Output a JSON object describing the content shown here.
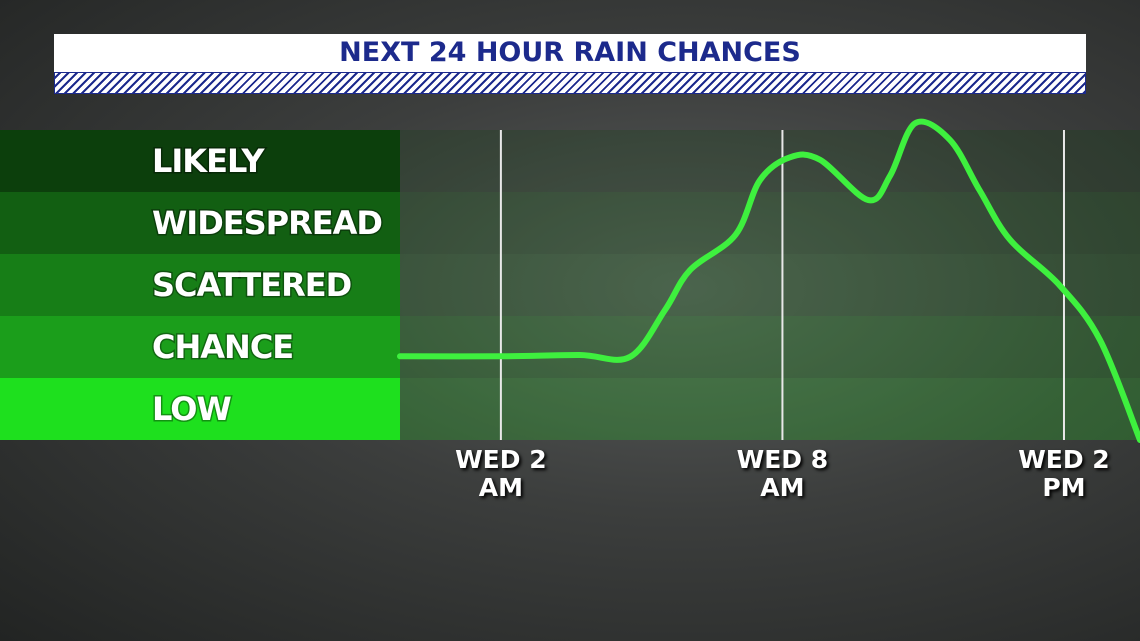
{
  "chart_data": {
    "type": "line",
    "title": "NEXT 24 HOUR RAIN CHANCES",
    "x": [
      -0.15,
      2,
      3.68,
      4.75,
      5.5,
      6.03,
      7.0,
      7.52,
      8.16,
      8.8,
      9.83,
      10.3,
      10.83,
      11.57,
      12.2,
      12.85,
      13.9,
      14.77,
      15.62
    ],
    "series": [
      {
        "color": "#3ef03e",
        "values": [
          1.35,
          1.35,
          1.37,
          1.34,
          2.1,
          2.74,
          3.31,
          4.19,
          4.56,
          4.52,
          3.87,
          4.27,
          5.11,
          4.84,
          4.03,
          3.23,
          2.5,
          1.61,
          0
        ]
      }
    ],
    "xlim": [
      -0.15,
      15.62
    ],
    "xticks": [
      {
        "value": 2,
        "label": "WED 2 AM"
      },
      {
        "value": 8,
        "label": "WED 8 AM"
      },
      {
        "value": 14,
        "label": "WED 2 PM"
      }
    ],
    "ylim": [
      0,
      5
    ],
    "yticks": [
      {
        "value": 0.5,
        "label": "LOW"
      },
      {
        "value": 1.5,
        "label": "CHANCE"
      },
      {
        "value": 2.5,
        "label": "SCATTERED"
      },
      {
        "value": 3.5,
        "label": "WIDESPREAD"
      },
      {
        "value": 4.5,
        "label": "LIKELY"
      }
    ],
    "band_colors": [
      "#1ee01e",
      "#1b9e1b",
      "#177e17",
      "#125f12",
      "#0c3f0c"
    ],
    "grid": true
  }
}
